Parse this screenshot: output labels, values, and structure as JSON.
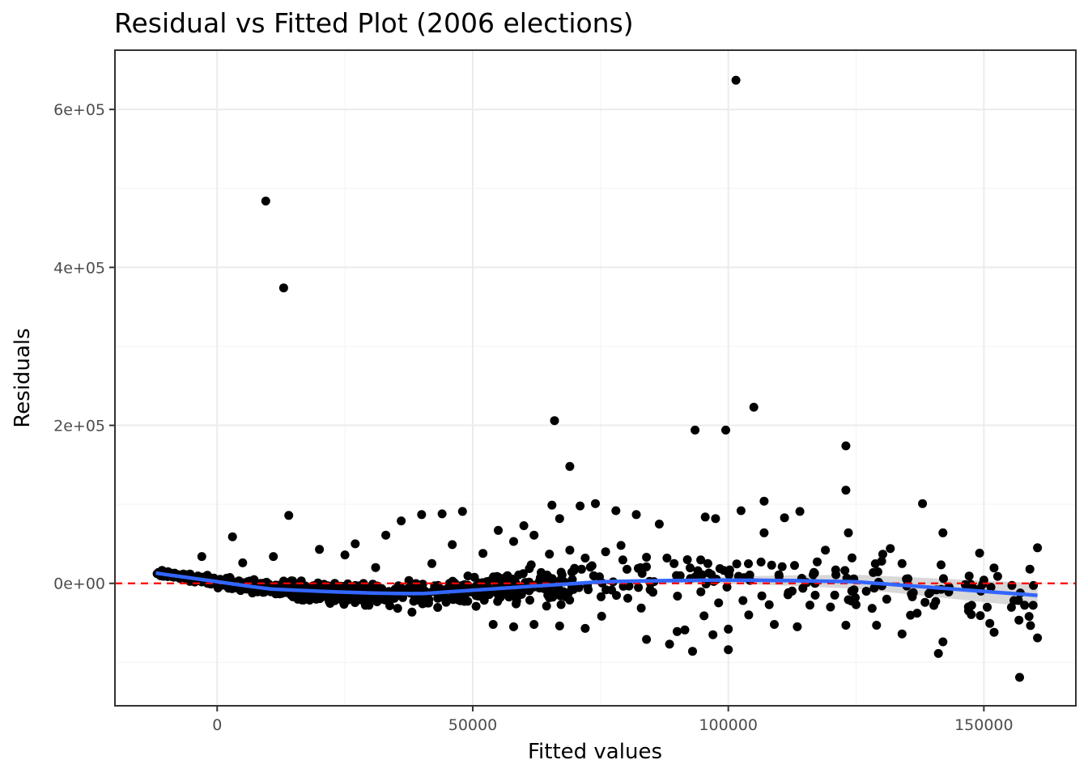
{
  "chart_data": {
    "type": "scatter",
    "title": "Residual vs Fitted Plot (2006 elections)",
    "xlabel": "Fitted values",
    "ylabel": "Residuals",
    "xlim": [
      -20000,
      168000
    ],
    "ylim": [
      -155000,
      675000
    ],
    "x_ticks": [
      0,
      50000,
      100000,
      150000
    ],
    "x_tick_labels": [
      "0",
      "50000",
      "100000",
      "150000"
    ],
    "y_ticks": [
      0,
      200000,
      400000,
      600000
    ],
    "y_tick_labels": [
      "0e+00",
      "2e+05",
      "4e+05",
      "6e+05"
    ],
    "grid": true,
    "reference_line": {
      "y": 0,
      "color": "#FF0000",
      "style": "dashed"
    },
    "point_color": "#000000",
    "smooth_color": "#3366FF",
    "band_color": "#BEBEBE",
    "outlier_points": [
      [
        9500,
        484000
      ],
      [
        13000,
        374000
      ],
      [
        14000,
        86000
      ],
      [
        3000,
        59000
      ],
      [
        -3000,
        34000
      ],
      [
        101500,
        637000
      ],
      [
        105000,
        223000
      ],
      [
        66000,
        206000
      ],
      [
        93500,
        194000
      ],
      [
        99500,
        194000
      ],
      [
        69000,
        148000
      ],
      [
        123000,
        174000
      ],
      [
        123000,
        118000
      ],
      [
        138000,
        101000
      ],
      [
        142000,
        64000
      ],
      [
        160500,
        45000
      ],
      [
        159000,
        18000
      ],
      [
        150000,
        4000
      ],
      [
        152000,
        -62000
      ],
      [
        160500,
        -69000
      ],
      [
        157000,
        -119000
      ],
      [
        142000,
        -74000
      ],
      [
        134000,
        -64000
      ],
      [
        129000,
        -53000
      ],
      [
        93000,
        -86000
      ],
      [
        100000,
        -84000
      ],
      [
        88500,
        -77000
      ],
      [
        84000,
        -71000
      ],
      [
        36000,
        79000
      ],
      [
        40000,
        87000
      ],
      [
        44000,
        88000
      ],
      [
        48000,
        91000
      ],
      [
        78000,
        92000
      ],
      [
        82000,
        87000
      ],
      [
        86500,
        75000
      ],
      [
        95500,
        84000
      ],
      [
        97500,
        82000
      ],
      [
        102500,
        92000
      ],
      [
        107000,
        104000
      ],
      [
        111000,
        83000
      ],
      [
        114000,
        91000
      ],
      [
        107000,
        64000
      ],
      [
        123500,
        64000
      ],
      [
        119000,
        42000
      ],
      [
        121000,
        17000
      ],
      [
        130000,
        28000
      ],
      [
        134000,
        25000
      ],
      [
        136000,
        -17000
      ],
      [
        138500,
        -24000
      ],
      [
        125000,
        -27000
      ],
      [
        123000,
        -53000
      ],
      [
        113500,
        -55000
      ],
      [
        109000,
        -52000
      ],
      [
        97000,
        -65000
      ],
      [
        100000,
        -58000
      ],
      [
        91500,
        -59000
      ],
      [
        90000,
        -61000
      ],
      [
        72000,
        -57000
      ],
      [
        67000,
        -54000
      ],
      [
        62000,
        -52000
      ],
      [
        58000,
        -55000
      ],
      [
        54000,
        -52000
      ],
      [
        60000,
        73000
      ],
      [
        62000,
        61000
      ],
      [
        65500,
        99000
      ],
      [
        67000,
        82000
      ],
      [
        71000,
        98000
      ],
      [
        74000,
        101000
      ],
      [
        55000,
        67000
      ],
      [
        58000,
        53000
      ],
      [
        33000,
        61000
      ],
      [
        27000,
        50000
      ],
      [
        46000,
        49000
      ],
      [
        52000,
        38000
      ],
      [
        42000,
        25000
      ],
      [
        31000,
        20000
      ],
      [
        25000,
        36000
      ],
      [
        20000,
        43000
      ],
      [
        11000,
        34000
      ],
      [
        5000,
        26000
      ],
      [
        108000,
        -27000
      ],
      [
        104000,
        -40000
      ],
      [
        117000,
        -15000
      ],
      [
        131000,
        -20000
      ],
      [
        120000,
        -30000
      ],
      [
        127000,
        -10000
      ],
      [
        135000,
        4000
      ],
      [
        102000,
        9000
      ],
      [
        88000,
        32000
      ],
      [
        79000,
        48000
      ],
      [
        84000,
        33000
      ],
      [
        69000,
        42000
      ],
      [
        72000,
        32000
      ],
      [
        76000,
        40000
      ],
      [
        65000,
        37000
      ],
      [
        92000,
        30000
      ]
    ]
  }
}
